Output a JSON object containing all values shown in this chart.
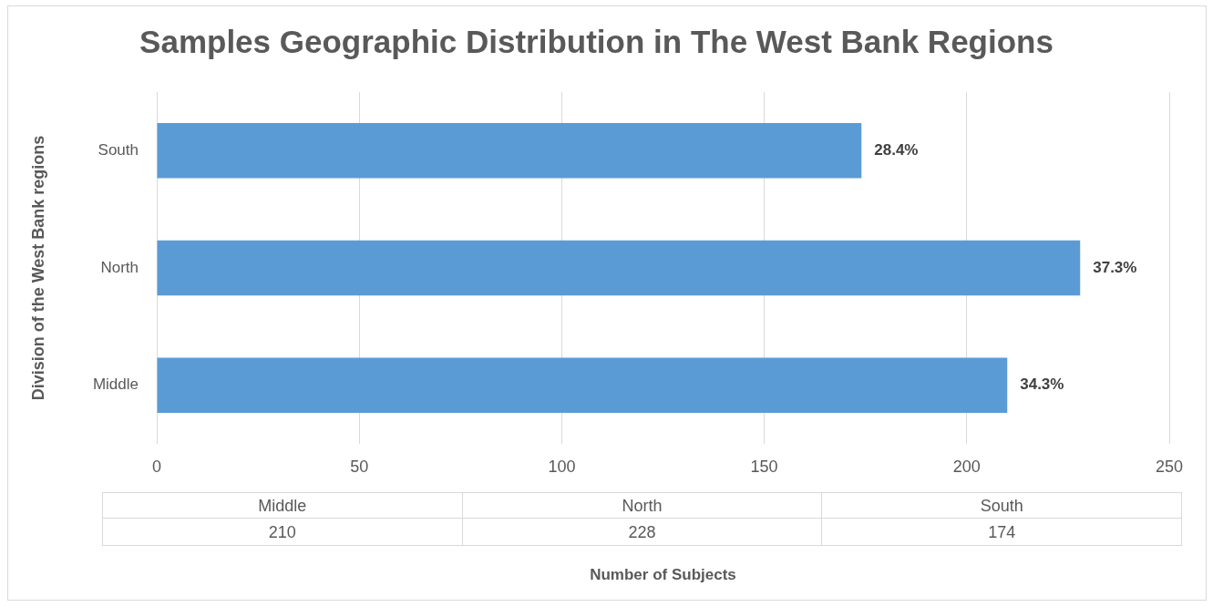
{
  "chart_data": [
    {
      "type": "bar",
      "orientation": "horizontal",
      "title": "Samples Geographic Distribution in The West Bank Regions",
      "xlabel": "Number of Subjects",
      "ylabel": "Division of the West Bank regions",
      "categories": [
        "South",
        "North",
        "Middle"
      ],
      "values": [
        174,
        228,
        210
      ],
      "color": "#5b9bd5",
      "annotations": [
        {
          "text": "28.4%",
          "x": 174,
          "y": "South"
        },
        {
          "text": "37.3%",
          "x": 228,
          "y": "North"
        },
        {
          "text": "34.3%",
          "x": 210,
          "y": "Middle"
        }
      ],
      "xlim": [
        0,
        250
      ],
      "xticks": [
        0,
        50,
        100,
        150,
        200,
        250
      ],
      "grid": "x"
    },
    {
      "type": "other",
      "categories": [
        "Middle",
        "North",
        "South"
      ],
      "values": [
        210,
        228,
        174
      ],
      "data_labels": true
    }
  ]
}
